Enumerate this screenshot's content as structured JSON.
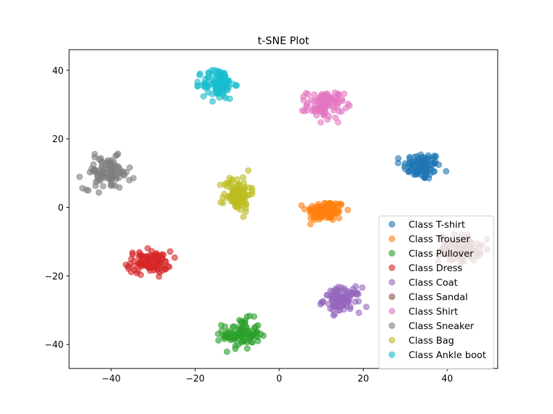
{
  "chart_data": {
    "type": "scatter",
    "title": "t-SNE Plot",
    "xlabel": "",
    "ylabel": "",
    "xlim": [
      -50,
      52
    ],
    "ylim": [
      -47,
      46
    ],
    "xticks": [
      -40,
      -20,
      0,
      20,
      40
    ],
    "yticks": [
      -40,
      -20,
      0,
      20,
      40
    ],
    "xtick_labels": [
      "−40",
      "−20",
      "0",
      "20",
      "40"
    ],
    "ytick_labels": [
      "−40",
      "−20",
      "0",
      "20",
      "40"
    ],
    "grid": false,
    "legend_position": "lower-right",
    "series": [
      {
        "name": "Class T-shirt",
        "color": "#1f77b4",
        "center": [
          34,
          12
        ],
        "spread": [
          2.2,
          2.0
        ]
      },
      {
        "name": "Class Trouser",
        "color": "#ff7f0e",
        "center": [
          11,
          -1
        ],
        "spread": [
          2.3,
          1.5
        ]
      },
      {
        "name": "Class Pullover",
        "color": "#2ca02c",
        "center": [
          -9,
          -37
        ],
        "spread": [
          2.2,
          2.2
        ]
      },
      {
        "name": "Class Dress",
        "color": "#d62728",
        "center": [
          -31,
          -16
        ],
        "spread": [
          2.6,
          1.6
        ]
      },
      {
        "name": "Class Coat",
        "color": "#9467bd",
        "center": [
          15,
          -27
        ],
        "spread": [
          2.2,
          1.8
        ]
      },
      {
        "name": "Class Sandal",
        "color": "#8c564b",
        "center": [
          43,
          -12
        ],
        "spread": [
          2.5,
          2.0
        ]
      },
      {
        "name": "Class Shirt",
        "color": "#e377c2",
        "center": [
          11,
          30
        ],
        "spread": [
          2.2,
          2.0
        ]
      },
      {
        "name": "Class Sneaker",
        "color": "#7f7f7f",
        "center": [
          -41,
          10
        ],
        "spread": [
          2.8,
          2.3
        ]
      },
      {
        "name": "Class Bag",
        "color": "#bcbd22",
        "center": [
          -10,
          4
        ],
        "spread": [
          1.6,
          2.6
        ]
      },
      {
        "name": "Class Ankle boot",
        "color": "#17becf",
        "center": [
          -14.5,
          36
        ],
        "spread": [
          1.9,
          2.3
        ]
      }
    ]
  }
}
